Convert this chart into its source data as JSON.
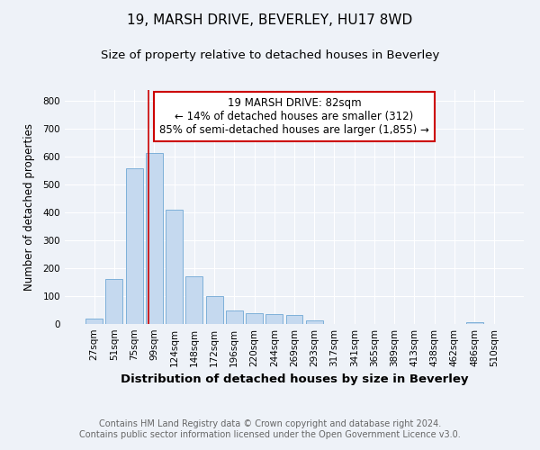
{
  "title1": "19, MARSH DRIVE, BEVERLEY, HU17 8WD",
  "title2": "Size of property relative to detached houses in Beverley",
  "xlabel": "Distribution of detached houses by size in Beverley",
  "ylabel": "Number of detached properties",
  "categories": [
    "27sqm",
    "51sqm",
    "75sqm",
    "99sqm",
    "124sqm",
    "148sqm",
    "172sqm",
    "196sqm",
    "220sqm",
    "244sqm",
    "269sqm",
    "293sqm",
    "317sqm",
    "341sqm",
    "365sqm",
    "389sqm",
    "413sqm",
    "438sqm",
    "462sqm",
    "486sqm",
    "510sqm"
  ],
  "values": [
    20,
    163,
    560,
    615,
    410,
    170,
    100,
    50,
    40,
    35,
    33,
    13,
    0,
    0,
    0,
    0,
    0,
    0,
    0,
    8,
    0
  ],
  "bar_color": "#c5d9ef",
  "bar_edge_color": "#7eb0d9",
  "bar_width": 0.85,
  "red_line_x": 2.72,
  "annotation_title": "19 MARSH DRIVE: 82sqm",
  "annotation_line1": "← 14% of detached houses are smaller (312)",
  "annotation_line2": "85% of semi-detached houses are larger (1,855) →",
  "annotation_box_color": "#ffffff",
  "annotation_box_edge": "#cc0000",
  "ylim": [
    0,
    840
  ],
  "yticks": [
    0,
    100,
    200,
    300,
    400,
    500,
    600,
    700,
    800
  ],
  "footer1": "Contains HM Land Registry data © Crown copyright and database right 2024.",
  "footer2": "Contains public sector information licensed under the Open Government Licence v3.0.",
  "background_color": "#eef2f8",
  "plot_bg_color": "#eef2f8",
  "grid_color": "#ffffff",
  "title1_fontsize": 11,
  "title2_fontsize": 9.5,
  "xlabel_fontsize": 9.5,
  "ylabel_fontsize": 8.5,
  "tick_fontsize": 7.5,
  "footer_fontsize": 7,
  "ann_fontsize": 8.5
}
